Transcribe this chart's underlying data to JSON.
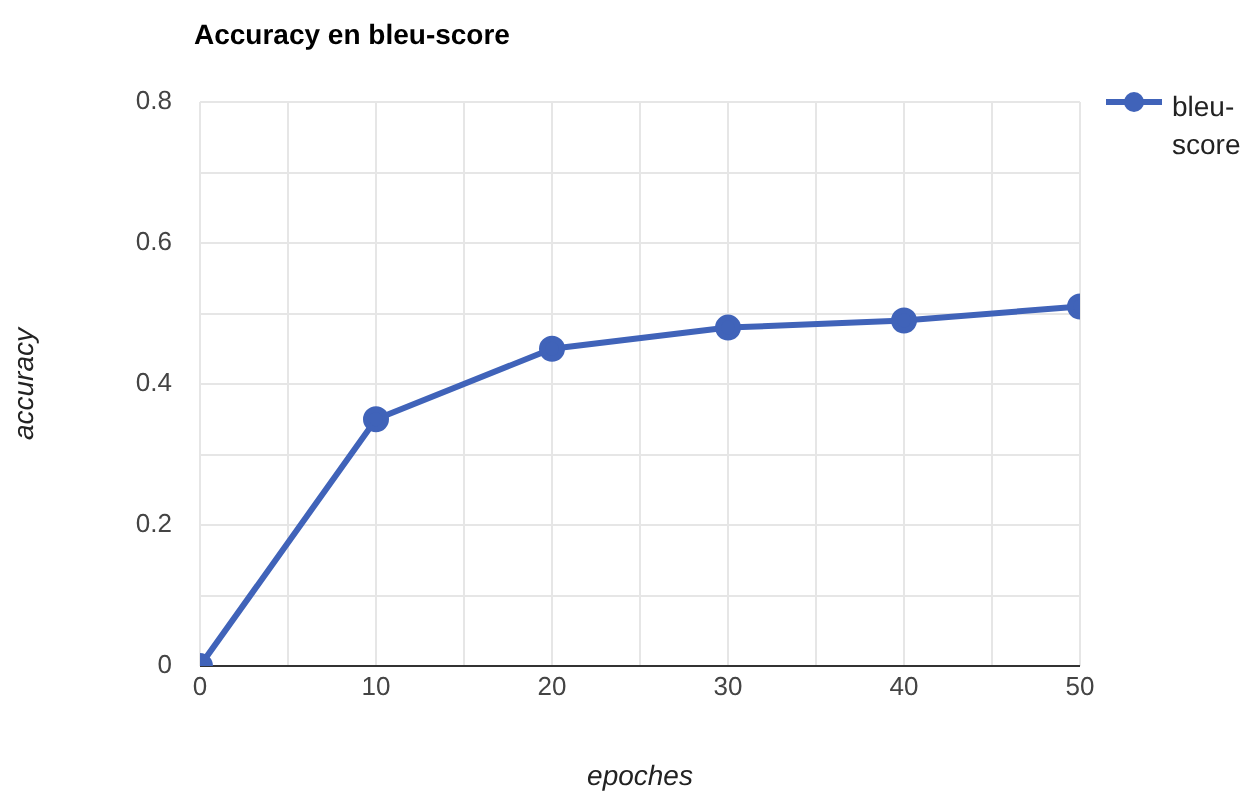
{
  "chart_data": {
    "type": "line",
    "title": "Accuracy en bleu-score",
    "xlabel": "epoches",
    "ylabel": "accuracy",
    "x": [
      0,
      10,
      20,
      30,
      40,
      50
    ],
    "series": [
      {
        "name": "bleu-score",
        "color": "#4063b9",
        "values": [
          0,
          0.35,
          0.45,
          0.48,
          0.49,
          0.51
        ]
      }
    ],
    "xlim": [
      0,
      50
    ],
    "xticks": [
      0,
      {
        "value": 5,
        "label": null
      },
      10,
      {
        "value": 15,
        "label": null
      },
      20,
      {
        "value": 25,
        "label": null
      },
      30,
      {
        "value": 35,
        "label": null
      },
      40,
      {
        "value": 45,
        "label": null
      },
      50
    ],
    "ylim": [
      0,
      0.8
    ],
    "yticks": [
      0,
      {
        "value": 0.1,
        "label": null
      },
      0.2,
      {
        "value": 0.3,
        "label": null
      },
      0.4,
      {
        "value": 0.5,
        "label": null
      },
      0.6,
      {
        "value": 0.7,
        "label": null
      },
      0.8
    ],
    "grid": true,
    "legend": "top right",
    "marker": "circle",
    "line_style": "solid"
  }
}
